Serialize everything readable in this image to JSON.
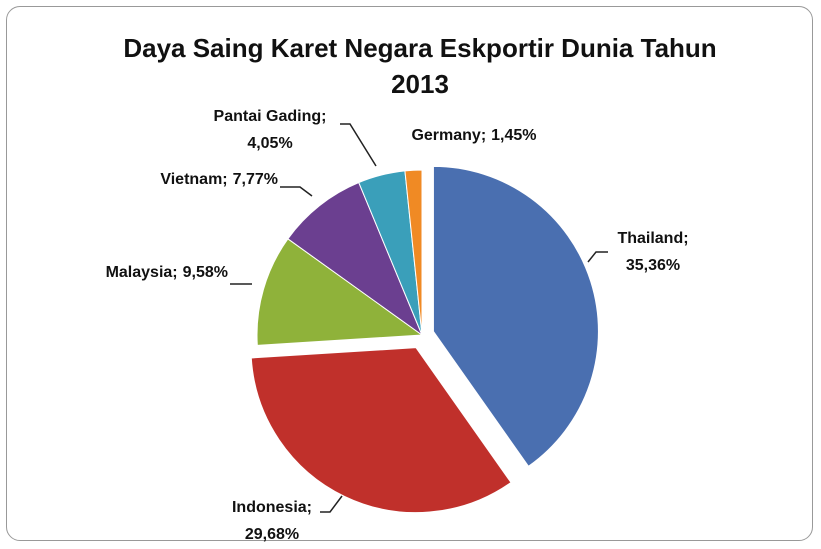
{
  "chart_data": {
    "type": "pie",
    "title": "Daya Saing Karet Negara Eskportir Dunia Tahun 2013",
    "categories": [
      "Thailand;",
      "Indonesia;",
      "Malaysia;",
      "Vietnam;",
      "Pantai Gading;",
      "Germany;"
    ],
    "values": [
      35.36,
      29.68,
      9.58,
      7.77,
      4.05,
      1.45
    ],
    "value_labels": [
      "35,36%",
      "29,68%",
      "9,58%",
      "7,77%",
      "4,05%",
      "1,45%"
    ],
    "colors": [
      "#4a6fb0",
      "#c0302b",
      "#8fb23a",
      "#6b3f90",
      "#3a9fba",
      "#f08a24"
    ]
  }
}
